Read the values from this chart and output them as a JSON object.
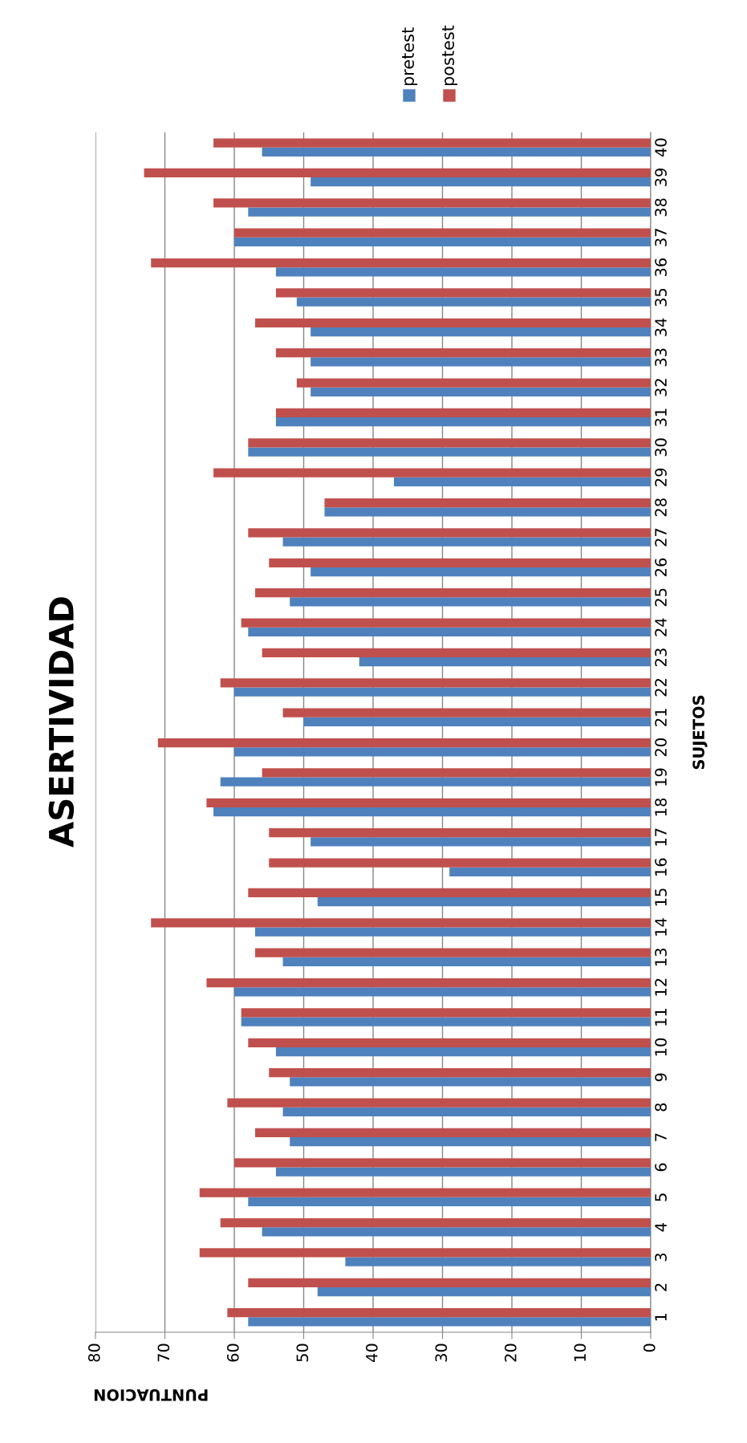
{
  "chart_data": {
    "type": "bar",
    "orientation": "horizontal",
    "title": "ASERTIVIDAD",
    "xlabel": "PUNTUACION",
    "ylabel": "SUJETOS",
    "categories": [
      "40",
      "39",
      "38",
      "37",
      "36",
      "35",
      "34",
      "33",
      "32",
      "31",
      "30",
      "29",
      "28",
      "27",
      "26",
      "25",
      "24",
      "23",
      "22",
      "21",
      "20",
      "19",
      "18",
      "17",
      "16",
      "15",
      "14",
      "13",
      "12",
      "11",
      "10",
      "9",
      "8",
      "7",
      "6",
      "5",
      "4",
      "3",
      "2",
      "1"
    ],
    "series": [
      {
        "name": "pretest",
        "color": "#4f81bd",
        "values": [
          56,
          49,
          58,
          60,
          54,
          51,
          49,
          49,
          49,
          54,
          58,
          37,
          47,
          53,
          49,
          52,
          58,
          42,
          60,
          50,
          60,
          62,
          63,
          49,
          29,
          48,
          57,
          53,
          60,
          59,
          54,
          52,
          53,
          52,
          54,
          58,
          56,
          44,
          48,
          58
        ]
      },
      {
        "name": "postest",
        "color": "#c0504d",
        "values": [
          63,
          73,
          63,
          60,
          72,
          54,
          57,
          54,
          51,
          54,
          58,
          63,
          47,
          58,
          55,
          57,
          59,
          56,
          62,
          53,
          71,
          56,
          64,
          55,
          55,
          58,
          72,
          57,
          64,
          59,
          58,
          55,
          61,
          57,
          60,
          65,
          62,
          65,
          58,
          61
        ]
      }
    ],
    "xlim": [
      80,
      0
    ],
    "xticks": [
      0,
      10,
      20,
      30,
      40,
      50,
      60,
      70,
      80
    ],
    "grid": "x",
    "legend": "top"
  }
}
